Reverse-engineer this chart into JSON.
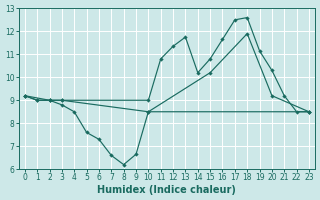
{
  "xlabel": "Humidex (Indice chaleur)",
  "xlim": [
    -0.5,
    23.5
  ],
  "ylim": [
    6,
    13
  ],
  "xticks": [
    0,
    1,
    2,
    3,
    4,
    5,
    6,
    7,
    8,
    9,
    10,
    11,
    12,
    13,
    14,
    15,
    16,
    17,
    18,
    19,
    20,
    21,
    22,
    23
  ],
  "yticks": [
    6,
    7,
    8,
    9,
    10,
    11,
    12,
    13
  ],
  "background_color": "#cde8e8",
  "grid_color": "#ffffff",
  "line_color": "#1a6b60",
  "line1_x": [
    0,
    1,
    2,
    3,
    4,
    5,
    6,
    7,
    8,
    9,
    10,
    23
  ],
  "line1_y": [
    9.2,
    9.0,
    9.0,
    8.8,
    8.5,
    7.6,
    7.3,
    6.6,
    6.2,
    6.65,
    8.5,
    8.5
  ],
  "line2_x": [
    0,
    1,
    2,
    3,
    10,
    11,
    12,
    13,
    14,
    15,
    16,
    17,
    18,
    19,
    20,
    21,
    22,
    23
  ],
  "line2_y": [
    9.2,
    9.0,
    9.0,
    9.0,
    9.0,
    10.8,
    11.35,
    11.75,
    10.2,
    10.8,
    11.65,
    12.5,
    12.6,
    11.15,
    10.3,
    9.2,
    8.5,
    8.5
  ],
  "line3_x": [
    0,
    2,
    3,
    10,
    15,
    18,
    20,
    23
  ],
  "line3_y": [
    9.2,
    9.0,
    9.0,
    8.5,
    10.2,
    11.9,
    9.2,
    8.5
  ],
  "fontsize_ticks": 5.5,
  "fontsize_label": 7
}
